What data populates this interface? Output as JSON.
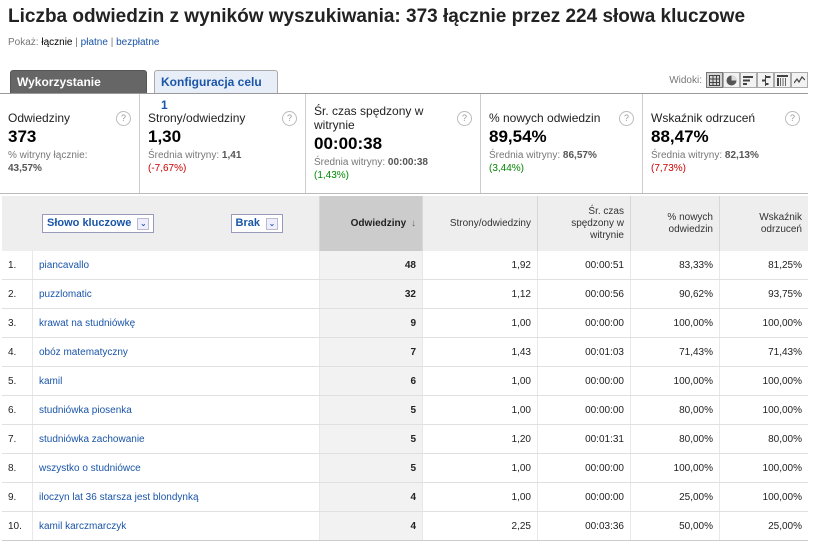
{
  "header": {
    "title": "Liczba odwiedzin z wyników wyszukiwania: 373 łącznie przez 224 słowa kluczowe",
    "show_label": "Pokaż:",
    "show_options": [
      "łącznie",
      "płatne",
      "bezpłatne"
    ],
    "separator": "|"
  },
  "tabs": {
    "active": "Wykorzystanie witryny",
    "inactive": "Konfiguracja celu 1"
  },
  "views": {
    "label": "Widoki:",
    "icons": [
      "table-view-icon",
      "pie-view-icon",
      "performance-view-icon",
      "comparison-view-icon",
      "pivot-view-icon",
      "sparkline-view-icon"
    ]
  },
  "metrics": [
    {
      "label": "Odwiedziny",
      "value": "373",
      "sub": "% witryny łącznie:",
      "sub_value": "43,57%",
      "delta": ""
    },
    {
      "label": "Strony/odwiedziny",
      "value": "1,30",
      "sub": "Średnia witryny:",
      "sub_value": "1,41",
      "delta": "(-7,67%)",
      "delta_color": "red"
    },
    {
      "label": "Śr. czas spędzony w witrynie",
      "value": "00:00:38",
      "sub": "Średnia witryny:",
      "sub_value": "00:00:38",
      "delta": "(1,43%)",
      "delta_color": "green"
    },
    {
      "label": "% nowych odwiedzin",
      "value": "89,54%",
      "sub": "Średnia witryny:",
      "sub_value": "86,57%",
      "delta": "(3,44%)",
      "delta_color": "green"
    },
    {
      "label": "Wskaźnik odrzuceń",
      "value": "88,47%",
      "sub": "Średnia witryny:",
      "sub_value": "82,13%",
      "delta": "(7,73%)",
      "delta_color": "red"
    }
  ],
  "help_glyph": "?",
  "table": {
    "dim1": "Słowo kluczowe",
    "dim2": "Brak",
    "columns": [
      "Odwiedziny",
      "Strony/odwiedziny",
      "Śr. czas spędzony w witrynie",
      "% nowych odwiedzin",
      "Wskaźnik odrzuceń"
    ],
    "sort_arrow": "↓",
    "rows": [
      {
        "idx": "1.",
        "keyword": "piancavallo",
        "visits": "48",
        "pages": "1,92",
        "time": "00:00:51",
        "new": "83,33%",
        "bounce": "81,25%"
      },
      {
        "idx": "2.",
        "keyword": "puzzlomatic",
        "visits": "32",
        "pages": "1,12",
        "time": "00:00:56",
        "new": "90,62%",
        "bounce": "93,75%"
      },
      {
        "idx": "3.",
        "keyword": "krawat na studniówkę",
        "visits": "9",
        "pages": "1,00",
        "time": "00:00:00",
        "new": "100,00%",
        "bounce": "100,00%"
      },
      {
        "idx": "4.",
        "keyword": "obóz matematyczny",
        "visits": "7",
        "pages": "1,43",
        "time": "00:01:03",
        "new": "71,43%",
        "bounce": "71,43%"
      },
      {
        "idx": "5.",
        "keyword": "kamil",
        "visits": "6",
        "pages": "1,00",
        "time": "00:00:00",
        "new": "100,00%",
        "bounce": "100,00%"
      },
      {
        "idx": "6.",
        "keyword": "studniówka piosenka",
        "visits": "5",
        "pages": "1,00",
        "time": "00:00:00",
        "new": "80,00%",
        "bounce": "100,00%"
      },
      {
        "idx": "7.",
        "keyword": "studniówka zachowanie",
        "visits": "5",
        "pages": "1,20",
        "time": "00:01:31",
        "new": "80,00%",
        "bounce": "80,00%"
      },
      {
        "idx": "8.",
        "keyword": "wszystko o studniówce",
        "visits": "5",
        "pages": "1,00",
        "time": "00:00:00",
        "new": "100,00%",
        "bounce": "100,00%"
      },
      {
        "idx": "9.",
        "keyword": "iloczyn lat 36 starsza jest blondynką",
        "visits": "4",
        "pages": "1,00",
        "time": "00:00:00",
        "new": "25,00%",
        "bounce": "100,00%"
      },
      {
        "idx": "10.",
        "keyword": "kamil karczmarczyk",
        "visits": "4",
        "pages": "2,25",
        "time": "00:03:36",
        "new": "50,00%",
        "bounce": "25,00%"
      }
    ]
  }
}
